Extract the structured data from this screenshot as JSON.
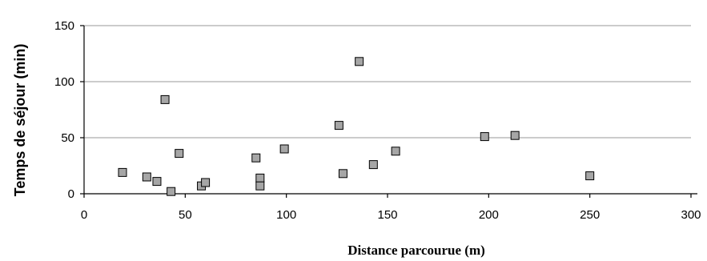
{
  "chart_data": {
    "type": "scatter",
    "xlabel": "Distance parcourue (m)",
    "ylabel": "Temps de séjour (min)",
    "xlim": [
      0,
      300
    ],
    "ylim": [
      0,
      150
    ],
    "xticks": [
      0,
      50,
      100,
      150,
      200,
      250,
      300
    ],
    "yticks": [
      0,
      50,
      100,
      150
    ],
    "grid": "horizontal",
    "marker": "square",
    "colors": {
      "marker_fill": "#a6a6a6",
      "marker_edge": "#000000",
      "grid": "#9a9a9a"
    },
    "points": [
      {
        "x": 19,
        "y": 19
      },
      {
        "x": 31,
        "y": 15
      },
      {
        "x": 36,
        "y": 11
      },
      {
        "x": 40,
        "y": 84
      },
      {
        "x": 43,
        "y": 2
      },
      {
        "x": 47,
        "y": 36
      },
      {
        "x": 58,
        "y": 7
      },
      {
        "x": 60,
        "y": 10
      },
      {
        "x": 85,
        "y": 32
      },
      {
        "x": 87,
        "y": 14
      },
      {
        "x": 87,
        "y": 7
      },
      {
        "x": 99,
        "y": 40
      },
      {
        "x": 126,
        "y": 61
      },
      {
        "x": 128,
        "y": 18
      },
      {
        "x": 136,
        "y": 118
      },
      {
        "x": 143,
        "y": 26
      },
      {
        "x": 154,
        "y": 38
      },
      {
        "x": 198,
        "y": 51
      },
      {
        "x": 213,
        "y": 52
      },
      {
        "x": 250,
        "y": 16
      }
    ]
  }
}
